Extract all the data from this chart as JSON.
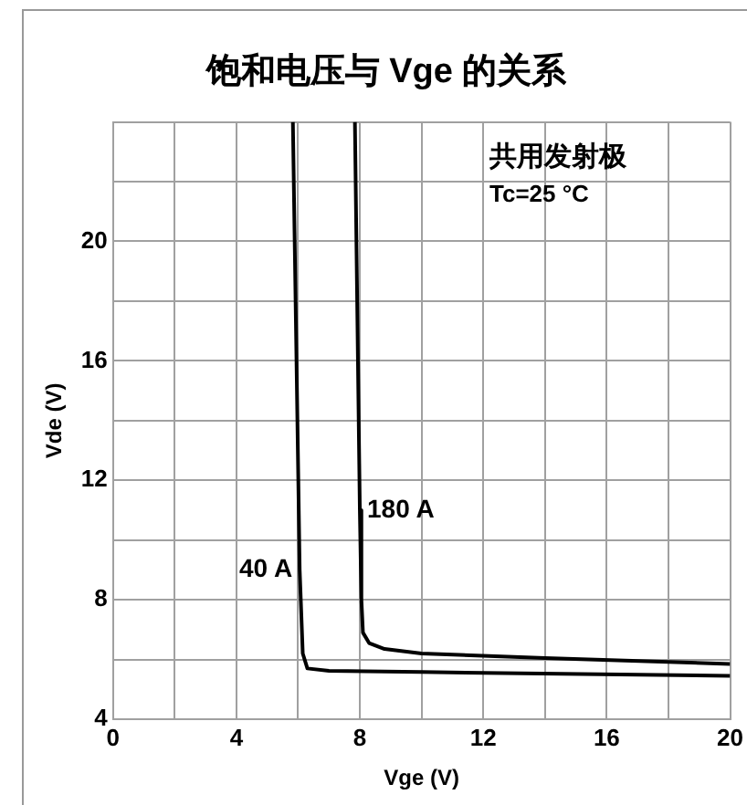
{
  "chart_data": {
    "type": "line",
    "title": "饱和电压与 Vge 的关系",
    "xlabel": "Vge (V)",
    "ylabel": "Vde (V)",
    "annotations": [
      "共用发射极",
      "Tc=25 °C"
    ],
    "xlim": [
      0,
      20
    ],
    "xticks": [
      0,
      {
        "value": 2,
        "label": null
      },
      4,
      {
        "value": 6,
        "label": null
      },
      8,
      {
        "value": 10,
        "label": null
      },
      12,
      {
        "value": 14,
        "label": null
      },
      16,
      {
        "value": 18,
        "label": null
      },
      20
    ],
    "ylim": [
      4,
      24
    ],
    "yticks": [
      4,
      {
        "value": 6,
        "label": null
      },
      8,
      {
        "value": 10,
        "label": null
      },
      12,
      {
        "value": 14,
        "label": null
      },
      16,
      {
        "value": 18,
        "label": null
      },
      20,
      {
        "value": 22,
        "label": null
      },
      {
        "value": 24,
        "label": null
      }
    ],
    "grid": true,
    "legend": false,
    "marker": "none",
    "line_style": "solid",
    "series": [
      {
        "name": "180 A",
        "color": "#000000",
        "x": [
          7.84,
          8.0,
          8.05,
          8.1,
          8.3,
          8.8,
          10,
          14,
          20
        ],
        "values": [
          24,
          11,
          8,
          6.9,
          6.55,
          6.35,
          6.2,
          6.05,
          5.85
        ]
      },
      {
        "name": "40 A",
        "color": "#000000",
        "x": [
          5.83,
          6.05,
          6.15,
          6.3,
          7,
          10,
          20
        ],
        "values": [
          24,
          9,
          6.2,
          5.7,
          5.62,
          5.58,
          5.45
        ]
      }
    ]
  }
}
